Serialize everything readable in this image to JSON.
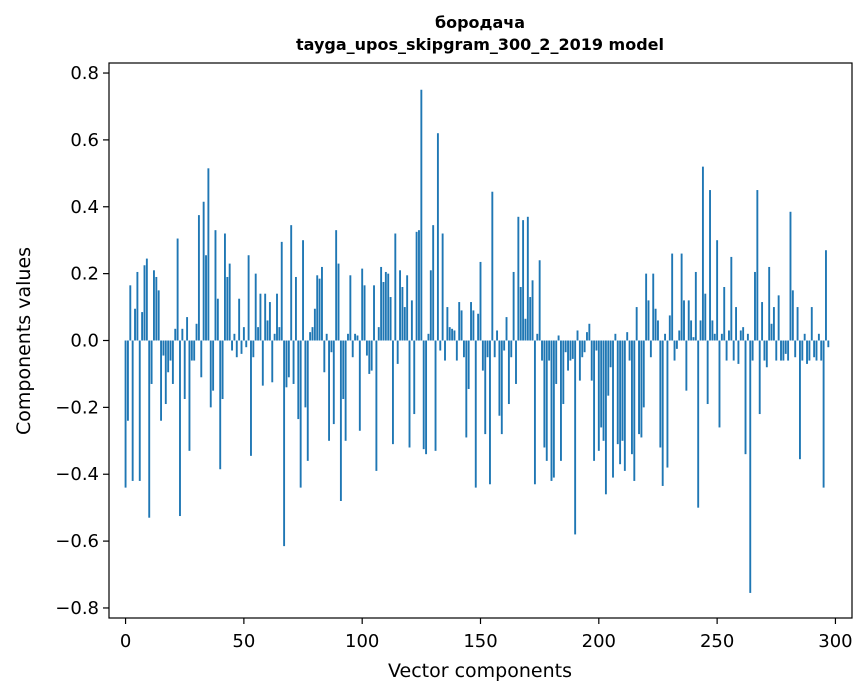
{
  "chart_data": {
    "type": "bar",
    "title": "бородача",
    "subtitle": "tayga_upos_skipgram_300_2_2019 model",
    "xlabel": "Vector components",
    "ylabel": "Components values",
    "xlim": [
      -7,
      307
    ],
    "ylim": [
      -0.83,
      0.83
    ],
    "xticks": [
      0,
      50,
      100,
      150,
      200,
      250,
      300
    ],
    "xtick_labels": [
      "0",
      "50",
      "100",
      "150",
      "200",
      "250",
      "300"
    ],
    "yticks": [
      -0.8,
      -0.6,
      -0.4,
      -0.2,
      0.0,
      0.2,
      0.4,
      0.6,
      0.8
    ],
    "ytick_labels": [
      "−0.8",
      "−0.6",
      "−0.4",
      "−0.2",
      "0.0",
      "0.2",
      "0.4",
      "0.6",
      "0.8"
    ],
    "grid": false,
    "bar_color": "#1f77b4",
    "x_start": 0,
    "values": [
      -0.44,
      -0.24,
      0.165,
      -0.42,
      0.095,
      0.205,
      -0.42,
      0.085,
      0.225,
      0.245,
      -0.53,
      -0.13,
      0.21,
      0.19,
      0.15,
      -0.24,
      -0.045,
      -0.19,
      -0.095,
      -0.06,
      -0.13,
      0.035,
      0.305,
      -0.525,
      0.035,
      -0.175,
      0.07,
      -0.33,
      -0.06,
      -0.06,
      0.05,
      0.375,
      -0.11,
      0.415,
      0.255,
      0.515,
      -0.2,
      -0.15,
      0.33,
      0.125,
      -0.385,
      -0.175,
      0.32,
      0.19,
      0.23,
      -0.03,
      0.02,
      -0.05,
      0.125,
      -0.04,
      0.04,
      -0.02,
      0.255,
      -0.345,
      -0.05,
      0.2,
      0.04,
      0.14,
      -0.135,
      0.14,
      0.06,
      0.115,
      -0.125,
      0.02,
      0.14,
      0.04,
      0.295,
      -0.615,
      -0.14,
      -0.11,
      0.345,
      -0.13,
      0.19,
      -0.235,
      -0.44,
      0.3,
      -0.2,
      -0.36,
      0.025,
      0.04,
      0.095,
      0.195,
      0.185,
      0.22,
      -0.095,
      0.02,
      -0.3,
      -0.035,
      -0.25,
      0.33,
      0.23,
      -0.48,
      -0.175,
      -0.3,
      0.02,
      0.195,
      -0.05,
      0.02,
      0.015,
      -0.27,
      0.215,
      0.165,
      -0.045,
      -0.1,
      -0.09,
      0.165,
      -0.39,
      0.04,
      0.22,
      0.175,
      0.205,
      0.2,
      0.13,
      -0.31,
      0.32,
      -0.07,
      0.21,
      0.16,
      0.1,
      0.195,
      -0.32,
      0.12,
      -0.22,
      0.325,
      0.33,
      0.75,
      -0.325,
      -0.34,
      0.02,
      0.21,
      0.345,
      -0.33,
      0.62,
      -0.03,
      0.32,
      -0.06,
      0.1,
      0.04,
      0.035,
      0.03,
      -0.06,
      0.115,
      0.09,
      -0.05,
      -0.29,
      -0.145,
      0.115,
      0.09,
      -0.44,
      0.08,
      0.235,
      -0.09,
      -0.28,
      -0.05,
      -0.43,
      0.445,
      -0.05,
      0.03,
      -0.225,
      -0.28,
      -0.03,
      0.07,
      -0.19,
      -0.05,
      0.205,
      -0.13,
      0.37,
      0.16,
      0.36,
      0.065,
      0.37,
      0.13,
      0.18,
      -0.43,
      0.02,
      0.24,
      -0.06,
      -0.32,
      -0.36,
      -0.06,
      -0.42,
      -0.41,
      -0.13,
      0.015,
      -0.36,
      -0.19,
      -0.035,
      -0.09,
      -0.06,
      -0.055,
      -0.58,
      0.03,
      -0.12,
      -0.05,
      -0.035,
      0.025,
      0.05,
      -0.12,
      -0.36,
      -0.03,
      -0.33,
      -0.26,
      -0.3,
      -0.46,
      -0.165,
      -0.08,
      -0.41,
      0.02,
      -0.31,
      -0.37,
      -0.3,
      -0.39,
      0.025,
      -0.06,
      -0.34,
      -0.42,
      0.1,
      -0.28,
      -0.29,
      -0.2,
      0.2,
      0.12,
      -0.05,
      0.2,
      0.095,
      0.06,
      -0.32,
      -0.435,
      0.02,
      -0.38,
      0.075,
      0.26,
      -0.06,
      -0.025,
      0.03,
      0.26,
      0.12,
      -0.15,
      0.12,
      0.06,
      0.01,
      0.205,
      -0.5,
      0.06,
      0.52,
      0.14,
      -0.19,
      0.45,
      0.06,
      0.02,
      0.3,
      -0.26,
      0.02,
      0.16,
      -0.06,
      0.03,
      0.25,
      -0.06,
      0.1,
      -0.07,
      0.03,
      0.04,
      -0.34,
      0.02,
      -0.755,
      -0.06,
      0.205,
      0.45,
      -0.22,
      0.115,
      -0.06,
      -0.08,
      0.22,
      0.05,
      0.1,
      -0.06,
      0.135,
      -0.06,
      -0.06,
      -0.04,
      -0.06,
      0.385,
      0.15,
      -0.05,
      0.1,
      -0.355,
      -0.06,
      0.02,
      -0.07,
      -0.06,
      0.1,
      -0.05,
      -0.06,
      0.02,
      -0.06,
      -0.44,
      0.27,
      -0.02
    ]
  }
}
